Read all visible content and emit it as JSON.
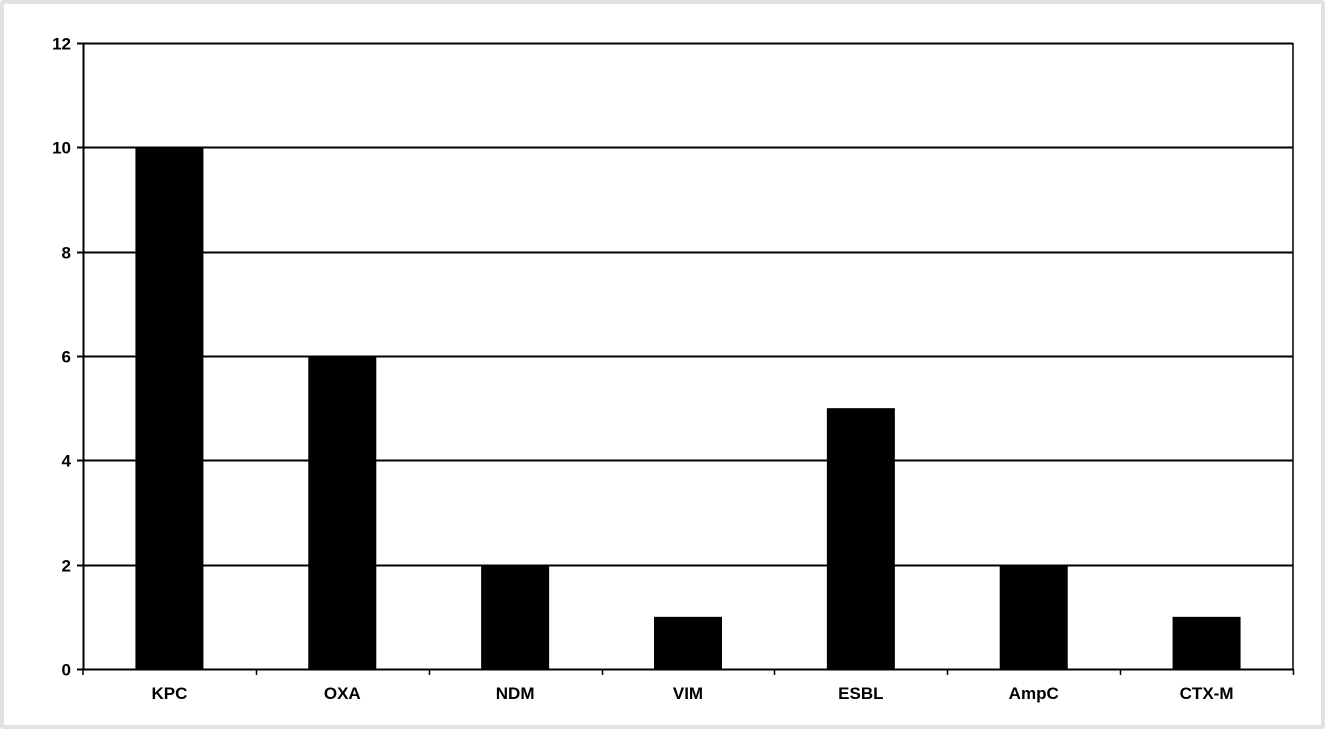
{
  "chart_data": {
    "type": "bar",
    "categories": [
      "KPC",
      "OXA",
      "NDM",
      "VIM",
      "ESBL",
      "AmpC",
      "CTX-M"
    ],
    "values": [
      10,
      6,
      2,
      1,
      5,
      2,
      1
    ],
    "title": "",
    "xlabel": "",
    "ylabel": "",
    "ylim": [
      0,
      12
    ],
    "yticks": [
      0,
      2,
      4,
      6,
      8,
      10,
      12
    ],
    "grid": true,
    "legend": false,
    "colors": {
      "bar": "#000000",
      "grid": "#000000",
      "background": "#ffffff"
    }
  }
}
